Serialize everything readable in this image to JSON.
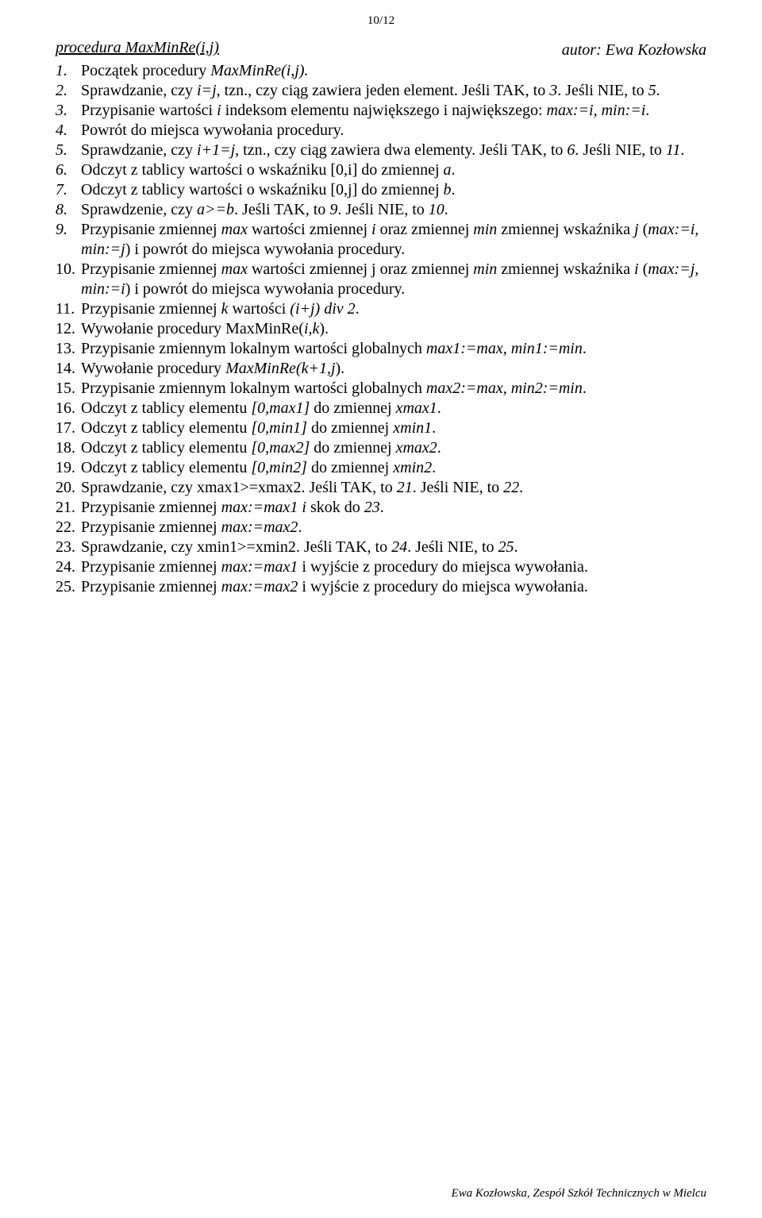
{
  "pageNumber": "10/12",
  "heading": "procedura MaxMinRe(i,j)",
  "author": "autor: Ewa Kozłowska",
  "steps": [
    {
      "n": "1.",
      "nItalic": true,
      "html": "Początek procedury <span class='i'>MaxMinRe(i,j).</span>"
    },
    {
      "n": "2.",
      "nItalic": true,
      "html": "Sprawdzanie, czy <span class='i'>i=j</span>, tzn., czy ciąg zawiera jeden element. Jeśli TAK, to <span class='i'>3</span>. Jeśli NIE, to <span class='i'>5</span>."
    },
    {
      "n": "3.",
      "nItalic": true,
      "html": "Przypisanie wartości <span class='i'>i</span> indeksom elementu największego i największego: <span class='i'>max:=i, min:=i</span>."
    },
    {
      "n": "4.",
      "nItalic": true,
      "html": "Powrót do miejsca wywołania procedury."
    },
    {
      "n": "5.",
      "nItalic": true,
      "html": "Sprawdzanie, czy <span class='i'>i+1=j</span>, tzn., czy ciąg zawiera dwa elementy. Jeśli TAK, to <span class='i'>6</span>. Jeśli NIE, to <span class='i'>11</span>."
    },
    {
      "n": "6.",
      "nItalic": true,
      "html": "Odczyt z tablicy wartości o wskaźniku [0,i] do zmiennej <span class='i'>a</span>."
    },
    {
      "n": "7.",
      "nItalic": true,
      "html": "Odczyt z tablicy wartości o wskaźniku [0,j] do zmiennej <span class='i'>b</span>."
    },
    {
      "n": "8.",
      "nItalic": true,
      "html": "Sprawdzenie, czy <span class='i'>a&gt;=b</span>. Jeśli TAK, to <span class='i'>9</span>. Jeśli NIE, to <span class='i'>10</span>."
    },
    {
      "n": "9.",
      "nItalic": true,
      "html": "Przypisanie zmiennej <span class='i'>max</span> wartości zmiennej <span class='i'>i</span> oraz zmiennej <span class='i'>min</span> zmiennej wskaźnika <span class='i'>j</span> (<span class='i'>max:=i, min:=j</span>) i powrót do miejsca wywołania procedury."
    },
    {
      "n": "10.",
      "nItalic": false,
      "html": "Przypisanie zmiennej <span class='i'>max</span> wartości zmiennej j oraz zmiennej <span class='i'>min</span> zmiennej wskaźnika <span class='i'>i</span> (<span class='i'>max:=j, min:=i</span>) i powrót do miejsca wywołania procedury."
    },
    {
      "n": "11.",
      "nItalic": false,
      "html": "Przypisanie zmiennej <span class='i'>k</span> wartości <span class='i'>(i+j) div 2</span>."
    },
    {
      "n": "12.",
      "nItalic": false,
      "html": "Wywołanie procedury MaxMinRe(<span class='i'>i,k</span>)."
    },
    {
      "n": "13.",
      "nItalic": false,
      "html": "Przypisanie zmiennym lokalnym wartości globalnych <span class='i'>max1:=max, min1:=min</span>."
    },
    {
      "n": "14.",
      "nItalic": false,
      "html": "Wywołanie procedury <span class='i'>MaxMinRe(k+1,j</span>)."
    },
    {
      "n": "15.",
      "nItalic": false,
      "html": "Przypisanie zmiennym lokalnym wartości globalnych <span class='i'>max2:=max, min2:=min</span>."
    },
    {
      "n": "16.",
      "nItalic": false,
      "html": "Odczyt z tablicy elementu <span class='i'>[0,max1]</span> do zmiennej <span class='i'>xmax1</span>."
    },
    {
      "n": "17.",
      "nItalic": false,
      "html": "Odczyt z tablicy elementu <span class='i'>[0,min1]</span> do zmiennej <span class='i'>xmin1</span>."
    },
    {
      "n": "18.",
      "nItalic": false,
      "html": "Odczyt z tablicy elementu <span class='i'>[0,max2]</span> do zmiennej <span class='i'>xmax2</span>."
    },
    {
      "n": "19.",
      "nItalic": false,
      "html": "Odczyt z tablicy elementu <span class='i'>[0,min2]</span> do zmiennej <span class='i'>xmin2</span>."
    },
    {
      "n": "20.",
      "nItalic": false,
      "html": "Sprawdzanie, czy xmax1&gt;=xmax2. Jeśli TAK, to <span class='i'>21</span>. Jeśli NIE, to <span class='i'>22</span>."
    },
    {
      "n": "21.",
      "nItalic": false,
      "html": "Przypisanie zmiennej <span class='i'>max:=max1 i</span> skok do <span class='i'>23</span>."
    },
    {
      "n": "22.",
      "nItalic": false,
      "html": "Przypisanie zmiennej <span class='i'>max:=max2</span>."
    },
    {
      "n": "23.",
      "nItalic": false,
      "html": "Sprawdzanie, czy xmin1&gt;=xmin2. Jeśli TAK, to <span class='i'>24</span>. Jeśli NIE, to <span class='i'>25</span>."
    },
    {
      "n": "24.",
      "nItalic": false,
      "html": "Przypisanie zmiennej <span class='i'>max:=max1</span> i wyjście z procedury do miejsca wywołania."
    },
    {
      "n": "25.",
      "nItalic": false,
      "html": "Przypisanie zmiennej <span class='i'>max:=max2</span> i wyjście z procedury do miejsca wywołania."
    }
  ],
  "footer": "Ewa Kozłowska, Zespół Szkół Technicznych w Mielcu"
}
